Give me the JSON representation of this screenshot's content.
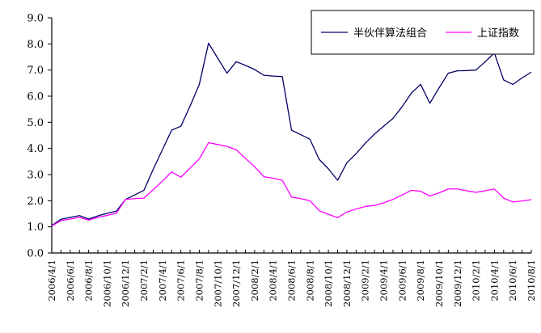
{
  "chart_data": {
    "type": "line",
    "title": "",
    "xlabel": "",
    "ylabel": "",
    "ylim": [
      0,
      9
    ],
    "yticks": [
      "0.0",
      "1.0",
      "2.0",
      "3.0",
      "4.0",
      "5.0",
      "6.0",
      "7.0",
      "8.0",
      "9.0"
    ],
    "grid": false,
    "legend_position": "top-right",
    "x_tick_labels": [
      "2006/4/1",
      "2006/6/1",
      "2006/8/1",
      "2006/10/1",
      "2006/12/1",
      "2007/2/1",
      "2007/4/1",
      "2007/6/1",
      "2007/8/1",
      "2007/10/1",
      "2007/12/1",
      "2008/2/1",
      "2008/4/1",
      "2008/6/1",
      "2008/8/1",
      "2008/10/1",
      "2008/12/1",
      "2009/2/1",
      "2009/4/1",
      "2009/6/1",
      "2009/8/1",
      "2009/10/1",
      "2009/12/1",
      "2010/2/1",
      "2010/4/1",
      "2010/6/1",
      "2010/8/1"
    ],
    "x": [
      "2006/4/1",
      "2006/5/1",
      "2006/6/1",
      "2006/7/1",
      "2006/8/1",
      "2006/9/1",
      "2006/10/1",
      "2006/11/1",
      "2006/12/1",
      "2007/1/1",
      "2007/2/1",
      "2007/3/1",
      "2007/4/1",
      "2007/5/1",
      "2007/6/1",
      "2007/7/1",
      "2007/8/1",
      "2007/9/1",
      "2007/10/1",
      "2007/11/1",
      "2007/12/1",
      "2008/1/1",
      "2008/2/1",
      "2008/3/1",
      "2008/4/1",
      "2008/5/1",
      "2008/6/1",
      "2008/7/1",
      "2008/8/1",
      "2008/9/1",
      "2008/10/1",
      "2008/11/1",
      "2008/12/1",
      "2009/1/1",
      "2009/2/1",
      "2009/3/1",
      "2009/4/1",
      "2009/5/1",
      "2009/6/1",
      "2009/7/1",
      "2009/8/1",
      "2009/9/1",
      "2009/10/1",
      "2009/11/1",
      "2009/12/1",
      "2010/1/1",
      "2010/2/1",
      "2010/3/1",
      "2010/4/1",
      "2010/5/1",
      "2010/6/1",
      "2010/7/1",
      "2010/8/1"
    ],
    "series": [
      {
        "name": "半伙伴算法组合",
        "color": "#000066",
        "values": [
          1.05,
          1.29,
          1.36,
          1.43,
          1.3,
          1.42,
          1.52,
          1.6,
          2.05,
          2.22,
          2.4,
          3.2,
          3.95,
          4.7,
          4.85,
          5.62,
          6.45,
          8.03,
          7.45,
          6.88,
          7.32,
          7.18,
          7.02,
          6.8,
          6.77,
          6.75,
          4.7,
          4.53,
          4.35,
          3.58,
          3.22,
          2.78,
          3.45,
          3.8,
          4.2,
          4.55,
          4.85,
          5.15,
          5.6,
          6.12,
          6.45,
          5.73,
          6.32,
          6.88,
          6.97,
          6.98,
          7.0,
          7.32,
          7.65,
          6.62,
          6.45,
          6.7,
          6.92
        ]
      },
      {
        "name": "上证指数",
        "color": "#ff00ff",
        "values": [
          1.03,
          1.24,
          1.3,
          1.36,
          1.26,
          1.36,
          1.44,
          1.52,
          2.05,
          2.08,
          2.1,
          2.42,
          2.75,
          3.1,
          2.9,
          3.25,
          3.6,
          4.22,
          4.15,
          4.08,
          3.95,
          3.62,
          3.3,
          2.92,
          2.86,
          2.78,
          2.14,
          2.08,
          2.0,
          1.62,
          1.48,
          1.35,
          1.57,
          1.68,
          1.78,
          1.82,
          1.92,
          2.05,
          2.22,
          2.4,
          2.36,
          2.18,
          2.3,
          2.45,
          2.45,
          2.38,
          2.32,
          2.38,
          2.45,
          2.1,
          1.95,
          1.99,
          2.04
        ]
      }
    ]
  }
}
